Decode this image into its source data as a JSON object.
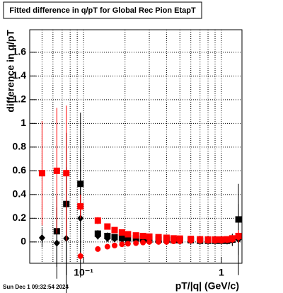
{
  "chart_data": {
    "type": "scatter",
    "title": "Fitted difference in q/pT for Global Rec Pion EtapT",
    "x_label": "pT/|q| (GeV/c)",
    "y_label": "difference in q/pT",
    "timestamp": "Sun Dec  1 09:32:54 2024",
    "xlog": true,
    "grid": true,
    "xlim": [
      0.0407,
      1.41
    ],
    "ylim": [
      -0.18,
      1.79
    ],
    "xticks": [
      {
        "value": 0.1,
        "label": "10⁻¹"
      },
      1
    ],
    "xgrid": [
      0.05,
      0.06,
      0.07,
      0.08,
      0.09,
      0.1,
      0.2,
      0.3,
      0.4,
      0.5,
      0.6,
      0.7,
      0.8,
      0.9,
      1
    ],
    "yticks": [
      0,
      0.2,
      0.4,
      0.6,
      0.8,
      1,
      1.2,
      1.4,
      1.6
    ],
    "x": [
      0.05,
      0.064,
      0.075,
      0.095,
      0.127,
      0.149,
      0.168,
      0.19,
      0.21,
      0.24,
      0.27,
      0.3,
      0.35,
      0.4,
      0.45,
      0.5,
      0.6,
      0.7,
      0.8,
      0.9,
      1.0,
      1.1,
      1.2,
      1.33
    ],
    "series": [
      {
        "marker": "square",
        "color": "#000000",
        "values": [
          null,
          0.09,
          0.32,
          0.49,
          0.07,
          0.05,
          0.04,
          0.035,
          0.03,
          0.03,
          0.025,
          0.02,
          0.02,
          0.02,
          0.015,
          0.015,
          0.015,
          0.01,
          0.01,
          0.01,
          0.01,
          0.01,
          0.02,
          0.19
        ],
        "errors": [
          null,
          0.3,
          0.6,
          0.6,
          0.03,
          0.03,
          0.02,
          0.02,
          0.02,
          0.02,
          0.02,
          0.02,
          0.02,
          0.02,
          0.02,
          0.02,
          0.02,
          0.02,
          0.02,
          0.02,
          0.02,
          0.03,
          0.05,
          0.3
        ]
      },
      {
        "marker": "diamond",
        "color": "#000000",
        "values": [
          0.035,
          -0.01,
          0.03,
          0.2,
          0.05,
          0.03,
          0.025,
          0.02,
          0.02,
          0.02,
          0.02,
          0.02,
          0.015,
          0.015,
          0.015,
          0.015,
          0.01,
          0.01,
          0.01,
          0.01,
          0.01,
          0.01,
          0.015,
          0.02
        ],
        "errors": [
          0.08,
          0.3,
          0.6,
          0.5,
          0.03,
          0.03,
          0.02,
          0.02,
          0.02,
          0.02,
          0.02,
          0.02,
          0.02,
          0.02,
          0.02,
          0.02,
          0.02,
          0.02,
          0.02,
          0.02,
          0.02,
          0.03,
          0.05,
          0.3
        ]
      },
      {
        "marker": "square",
        "color": "#ff0000",
        "values": [
          0.58,
          0.6,
          0.58,
          0.3,
          0.18,
          0.13,
          0.1,
          0.08,
          0.065,
          0.055,
          0.05,
          0.045,
          0.04,
          0.035,
          0.03,
          0.028,
          0.025,
          0.022,
          0.02,
          0.02,
          0.02,
          0.022,
          0.03,
          0.05
        ],
        "errors": [
          0.44,
          0.53,
          0.57,
          0.1,
          0.03,
          0.02,
          0.02,
          0.02,
          0.02,
          0.02,
          0.02,
          0.02,
          0.02,
          0.02,
          0.02,
          0.02,
          0.02,
          0.02,
          0.02,
          0.02,
          0.02,
          0.02,
          0.03,
          0.05
        ]
      },
      {
        "marker": "circle",
        "color": "#ff0000",
        "values": [
          null,
          null,
          null,
          -0.12,
          -0.06,
          -0.04,
          -0.03,
          -0.02,
          -0.015,
          -0.01,
          -0.005,
          0,
          0,
          0,
          0.005,
          0.005,
          0.01,
          0.01,
          0.01,
          0.01,
          0.01,
          0.015,
          0.02,
          0.04
        ],
        "errors": [
          null,
          null,
          null,
          0.03,
          0.02,
          0.02,
          0.02,
          0.02,
          0.02,
          0.02,
          0.02,
          0.02,
          0.02,
          0.02,
          0.02,
          0.02,
          0.02,
          0.02,
          0.02,
          0.02,
          0.02,
          0.02,
          0.03,
          0.05
        ]
      }
    ]
  }
}
